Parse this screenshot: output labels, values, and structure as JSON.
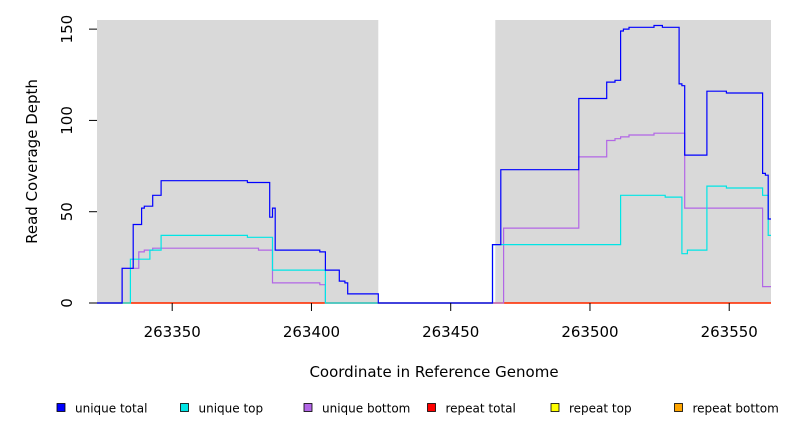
{
  "chart_data": {
    "type": "line",
    "style": "step",
    "xlabel": "Coordinate in Reference Genome",
    "ylabel": "Read Coverage Depth",
    "xlim": [
      263323,
      263565
    ],
    "ylim": [
      0,
      155
    ],
    "x_ticks": [
      263350,
      263400,
      263450,
      263500,
      263550
    ],
    "y_ticks": [
      0,
      50,
      100,
      150
    ],
    "background": "#d9d9d9",
    "gap": {
      "x": [
        263424,
        263466
      ],
      "color": "#ffffff"
    },
    "legend_position": "bottom",
    "series": [
      {
        "name": "unique total",
        "color": "#0000ff",
        "points": [
          [
            263323,
            0
          ],
          [
            263332,
            0
          ],
          [
            263332,
            19
          ],
          [
            263336,
            19
          ],
          [
            263336,
            43
          ],
          [
            263339,
            43
          ],
          [
            263339,
            52
          ],
          [
            263340,
            52
          ],
          [
            263340,
            53
          ],
          [
            263343,
            53
          ],
          [
            263343,
            59
          ],
          [
            263346,
            59
          ],
          [
            263346,
            67
          ],
          [
            263377,
            67
          ],
          [
            263377,
            66
          ],
          [
            263385,
            66
          ],
          [
            263385,
            47
          ],
          [
            263386,
            47
          ],
          [
            263386,
            52
          ],
          [
            263387,
            52
          ],
          [
            263387,
            29
          ],
          [
            263403,
            29
          ],
          [
            263403,
            28
          ],
          [
            263405,
            28
          ],
          [
            263405,
            18
          ],
          [
            263410,
            18
          ],
          [
            263410,
            12
          ],
          [
            263412,
            12
          ],
          [
            263412,
            11
          ],
          [
            263413,
            11
          ],
          [
            263413,
            5
          ],
          [
            263424,
            5
          ],
          [
            263424,
            0
          ],
          [
            263465,
            0
          ],
          [
            263465,
            32
          ],
          [
            263468,
            32
          ],
          [
            263468,
            73
          ],
          [
            263496,
            73
          ],
          [
            263496,
            112
          ],
          [
            263506,
            112
          ],
          [
            263506,
            121
          ],
          [
            263509,
            121
          ],
          [
            263509,
            122
          ],
          [
            263511,
            122
          ],
          [
            263511,
            149
          ],
          [
            263512,
            149
          ],
          [
            263512,
            150
          ],
          [
            263514,
            150
          ],
          [
            263514,
            151
          ],
          [
            263523,
            151
          ],
          [
            263523,
            152
          ],
          [
            263526,
            152
          ],
          [
            263526,
            151
          ],
          [
            263532,
            151
          ],
          [
            263532,
            120
          ],
          [
            263533,
            120
          ],
          [
            263533,
            119
          ],
          [
            263534,
            119
          ],
          [
            263534,
            81
          ],
          [
            263542,
            81
          ],
          [
            263542,
            116
          ],
          [
            263549,
            116
          ],
          [
            263549,
            115
          ],
          [
            263562,
            115
          ],
          [
            263562,
            71
          ],
          [
            263563,
            71
          ],
          [
            263563,
            70
          ],
          [
            263564,
            70
          ],
          [
            263564,
            46
          ],
          [
            263565,
            46
          ]
        ]
      },
      {
        "name": "unique top",
        "color": "#00e5e5",
        "points": [
          [
            263323,
            0
          ],
          [
            263335,
            0
          ],
          [
            263335,
            24
          ],
          [
            263342,
            24
          ],
          [
            263342,
            29
          ],
          [
            263346,
            29
          ],
          [
            263346,
            37
          ],
          [
            263377,
            37
          ],
          [
            263377,
            36
          ],
          [
            263386,
            36
          ],
          [
            263386,
            18
          ],
          [
            263405,
            18
          ],
          [
            263405,
            0
          ],
          [
            263465,
            0
          ],
          [
            263465,
            32
          ],
          [
            263511,
            32
          ],
          [
            263511,
            59
          ],
          [
            263527,
            59
          ],
          [
            263527,
            58
          ],
          [
            263533,
            58
          ],
          [
            263533,
            27
          ],
          [
            263535,
            27
          ],
          [
            263535,
            29
          ],
          [
            263542,
            29
          ],
          [
            263542,
            64
          ],
          [
            263549,
            64
          ],
          [
            263549,
            63
          ],
          [
            263562,
            63
          ],
          [
            263562,
            59
          ],
          [
            263564,
            59
          ],
          [
            263564,
            37
          ],
          [
            263565,
            37
          ]
        ]
      },
      {
        "name": "unique bottom",
        "color": "#b266e6",
        "points": [
          [
            263323,
            0
          ],
          [
            263332,
            0
          ],
          [
            263332,
            19
          ],
          [
            263338,
            19
          ],
          [
            263338,
            28
          ],
          [
            263340,
            28
          ],
          [
            263340,
            29
          ],
          [
            263343,
            29
          ],
          [
            263343,
            30
          ],
          [
            263381,
            30
          ],
          [
            263381,
            29
          ],
          [
            263386,
            29
          ],
          [
            263386,
            11
          ],
          [
            263403,
            11
          ],
          [
            263403,
            10
          ],
          [
            263405,
            10
          ],
          [
            263405,
            0
          ],
          [
            263469,
            0
          ],
          [
            263469,
            41
          ],
          [
            263496,
            41
          ],
          [
            263496,
            80
          ],
          [
            263506,
            80
          ],
          [
            263506,
            89
          ],
          [
            263509,
            89
          ],
          [
            263509,
            90
          ],
          [
            263511,
            90
          ],
          [
            263511,
            91
          ],
          [
            263514,
            91
          ],
          [
            263514,
            92
          ],
          [
            263523,
            92
          ],
          [
            263523,
            93
          ],
          [
            263534,
            93
          ],
          [
            263534,
            52
          ],
          [
            263562,
            52
          ],
          [
            263562,
            9
          ],
          [
            263565,
            9
          ]
        ]
      },
      {
        "name": "repeat total",
        "color": "#ff0000",
        "points": [
          [
            263323,
            0
          ],
          [
            263565,
            0
          ]
        ]
      },
      {
        "name": "repeat top",
        "color": "#ffff00",
        "points": [
          [
            263323,
            0
          ],
          [
            263565,
            0
          ]
        ]
      },
      {
        "name": "repeat bottom",
        "color": "#ffa500",
        "points": [
          [
            263323,
            0
          ],
          [
            263565,
            0
          ]
        ]
      }
    ]
  }
}
